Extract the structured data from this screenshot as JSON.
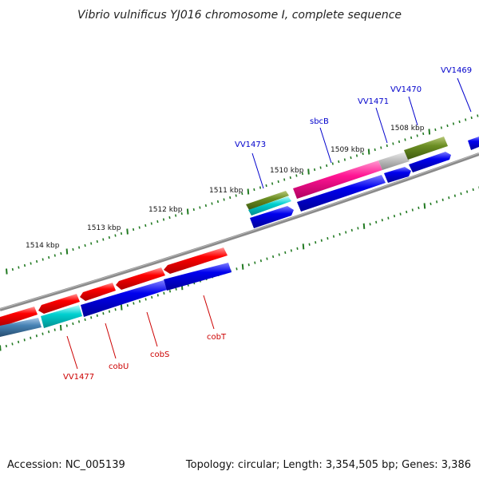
{
  "title": "Vibrio vulnificus YJ016 chromosome I, complete sequence",
  "footer": {
    "accession": "Accession: NC_005139",
    "stats": "Topology: circular; Length: 3,354,505 bp; Genes: 3,386"
  },
  "colors": {
    "gene_forward": "#ff0000",
    "gene_reverse": "#0000ee",
    "label_forward": "#0000cc",
    "label_reverse": "#cc0000",
    "tick": "#227a22",
    "backbone": "#808080"
  },
  "scale_labels": [
    "1514 kbp",
    "1513 kbp",
    "1512 kbp",
    "1511 kbp",
    "1510 kbp",
    "1509 kbp",
    "1508 kbp"
  ],
  "gene_labels": [
    {
      "text": "VV1473",
      "strand": "forward"
    },
    {
      "text": "sbcB",
      "strand": "forward"
    },
    {
      "text": "VV1471",
      "strand": "forward"
    },
    {
      "text": "VV1470",
      "strand": "forward"
    },
    {
      "text": "VV1469",
      "strand": "forward"
    },
    {
      "text": "VV1477",
      "strand": "reverse"
    },
    {
      "text": "cobU",
      "strand": "reverse"
    },
    {
      "text": "cobS",
      "strand": "reverse"
    },
    {
      "text": "cobT",
      "strand": "reverse"
    }
  ]
}
